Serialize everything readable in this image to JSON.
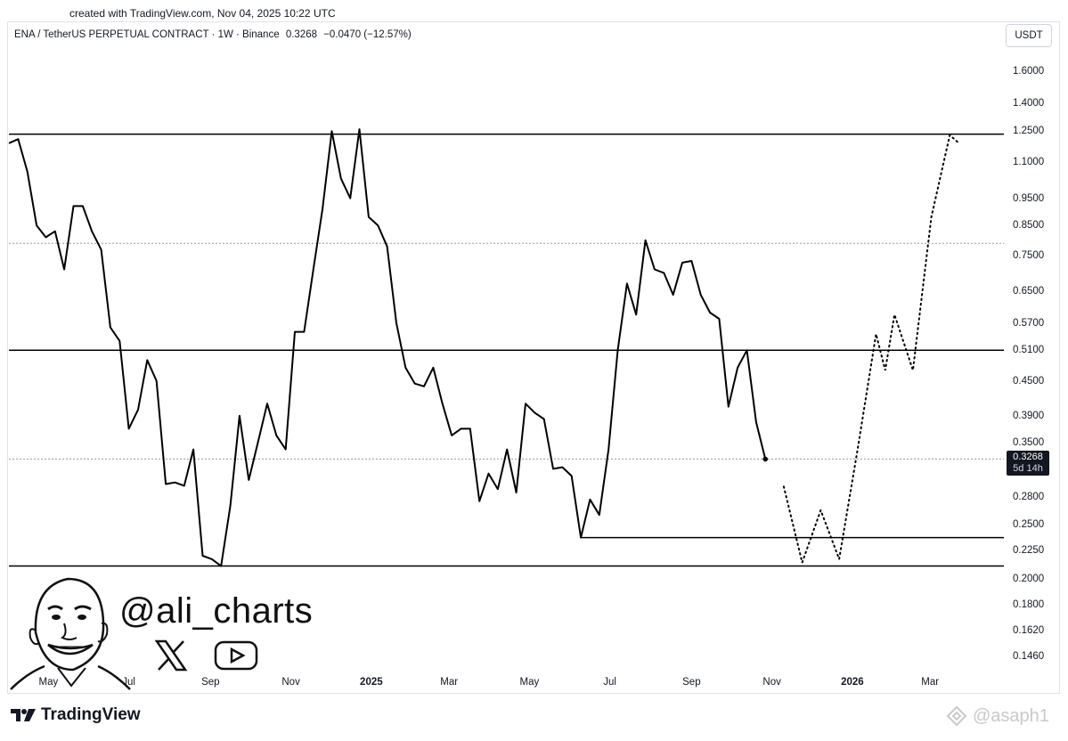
{
  "created_text": "created with TradingView.com, Nov 04, 2025 10:22 UTC",
  "header": {
    "symbol": "ENA / TetherUS PERPETUAL CONTRACT · 1W · Binance",
    "price": "0.3268",
    "change": "−0.0470 (−12.57%)"
  },
  "currency": "USDT",
  "price_badge": {
    "price": "0.3268",
    "countdown": "5d 14h"
  },
  "handle": "@ali_charts",
  "brand": "TradingView",
  "watermark": "@asaph1",
  "colors": {
    "line": "#000000",
    "grid_dash": "#9598a1",
    "badge": "#131722"
  },
  "chart_data": {
    "type": "line",
    "y_scale": "log",
    "ylim": [
      0.135,
      1.75
    ],
    "y_ticks": [
      "1.6000",
      "1.4000",
      "1.2500",
      "1.1000",
      "0.9500",
      "0.8500",
      "0.7500",
      "0.6500",
      "0.5700",
      "0.5100",
      "0.4500",
      "0.3900",
      "0.3500",
      "0.2800",
      "0.2500",
      "0.2250",
      "0.2000",
      "0.1800",
      "0.1620",
      "0.1460"
    ],
    "x_labels": [
      {
        "label": "May",
        "bold": false
      },
      {
        "label": "Jul",
        "bold": false
      },
      {
        "label": "Sep",
        "bold": false
      },
      {
        "label": "Nov",
        "bold": false
      },
      {
        "label": "2025",
        "bold": true
      },
      {
        "label": "Mar",
        "bold": false
      },
      {
        "label": "May",
        "bold": false
      },
      {
        "label": "Jul",
        "bold": false
      },
      {
        "label": "Sep",
        "bold": false
      },
      {
        "label": "Nov",
        "bold": false
      },
      {
        "label": "2026",
        "bold": true
      },
      {
        "label": "Mar",
        "bold": false
      }
    ],
    "x_range": [
      "2024-04-01",
      "2026-04-26"
    ],
    "price_series": [
      [
        "2024-04-01",
        1.19
      ],
      [
        "2024-04-08",
        1.21
      ],
      [
        "2024-04-15",
        1.06
      ],
      [
        "2024-04-22",
        0.85
      ],
      [
        "2024-04-29",
        0.81
      ],
      [
        "2024-05-06",
        0.83
      ],
      [
        "2024-05-13",
        0.71
      ],
      [
        "2024-05-20",
        0.92
      ],
      [
        "2024-05-27",
        0.92
      ],
      [
        "2024-06-03",
        0.83
      ],
      [
        "2024-06-10",
        0.77
      ],
      [
        "2024-06-17",
        0.56
      ],
      [
        "2024-06-24",
        0.53
      ],
      [
        "2024-07-01",
        0.37
      ],
      [
        "2024-07-08",
        0.4
      ],
      [
        "2024-07-15",
        0.49
      ],
      [
        "2024-07-22",
        0.45
      ],
      [
        "2024-07-29",
        0.295
      ],
      [
        "2024-08-05",
        0.297
      ],
      [
        "2024-08-12",
        0.293
      ],
      [
        "2024-08-19",
        0.34
      ],
      [
        "2024-08-26",
        0.22
      ],
      [
        "2024-09-02",
        0.217
      ],
      [
        "2024-09-09",
        0.211
      ],
      [
        "2024-09-16",
        0.27
      ],
      [
        "2024-09-23",
        0.39
      ],
      [
        "2024-09-30",
        0.3
      ],
      [
        "2024-10-07",
        0.35
      ],
      [
        "2024-10-14",
        0.41
      ],
      [
        "2024-10-21",
        0.36
      ],
      [
        "2024-10-28",
        0.34
      ],
      [
        "2024-11-04",
        0.55
      ],
      [
        "2024-11-11",
        0.55
      ],
      [
        "2024-11-18",
        0.71
      ],
      [
        "2024-11-25",
        0.91
      ],
      [
        "2024-12-02",
        1.25
      ],
      [
        "2024-12-09",
        1.03
      ],
      [
        "2024-12-16",
        0.95
      ],
      [
        "2024-12-23",
        1.26
      ],
      [
        "2024-12-30",
        0.88
      ],
      [
        "2025-01-06",
        0.85
      ],
      [
        "2025-01-13",
        0.78
      ],
      [
        "2025-01-20",
        0.57
      ],
      [
        "2025-01-27",
        0.475
      ],
      [
        "2025-02-03",
        0.445
      ],
      [
        "2025-02-10",
        0.44
      ],
      [
        "2025-02-17",
        0.475
      ],
      [
        "2025-02-24",
        0.41
      ],
      [
        "2025-03-03",
        0.36
      ],
      [
        "2025-03-10",
        0.37
      ],
      [
        "2025-03-17",
        0.37
      ],
      [
        "2025-03-24",
        0.275
      ],
      [
        "2025-03-31",
        0.308
      ],
      [
        "2025-04-07",
        0.289
      ],
      [
        "2025-04-14",
        0.34
      ],
      [
        "2025-04-21",
        0.285
      ],
      [
        "2025-04-28",
        0.41
      ],
      [
        "2025-05-05",
        0.395
      ],
      [
        "2025-05-12",
        0.385
      ],
      [
        "2025-05-19",
        0.314
      ],
      [
        "2025-05-26",
        0.316
      ],
      [
        "2025-06-02",
        0.305
      ],
      [
        "2025-06-09",
        0.237
      ],
      [
        "2025-06-16",
        0.277
      ],
      [
        "2025-06-23",
        0.26
      ],
      [
        "2025-06-30",
        0.34
      ],
      [
        "2025-07-07",
        0.51
      ],
      [
        "2025-07-14",
        0.67
      ],
      [
        "2025-07-21",
        0.59
      ],
      [
        "2025-07-28",
        0.8
      ],
      [
        "2025-08-04",
        0.71
      ],
      [
        "2025-08-11",
        0.7
      ],
      [
        "2025-08-18",
        0.64
      ],
      [
        "2025-08-25",
        0.73
      ],
      [
        "2025-09-01",
        0.735
      ],
      [
        "2025-09-08",
        0.64
      ],
      [
        "2025-09-15",
        0.595
      ],
      [
        "2025-09-22",
        0.58
      ],
      [
        "2025-09-29",
        0.405
      ],
      [
        "2025-10-06",
        0.475
      ],
      [
        "2025-10-13",
        0.51
      ],
      [
        "2025-10-20",
        0.38
      ],
      [
        "2025-10-27",
        0.3268
      ]
    ],
    "projection_series": [
      [
        "2025-11-10",
        0.292
      ],
      [
        "2025-11-24",
        0.214
      ],
      [
        "2025-12-08",
        0.265
      ],
      [
        "2025-12-22",
        0.217
      ],
      [
        "2026-01-05",
        0.34
      ],
      [
        "2026-01-19",
        0.545
      ],
      [
        "2026-01-26",
        0.47
      ],
      [
        "2026-02-02",
        0.59
      ],
      [
        "2026-02-16",
        0.47
      ],
      [
        "2026-03-02",
        0.88
      ],
      [
        "2026-03-16",
        1.23
      ],
      [
        "2026-03-23",
        1.19
      ]
    ],
    "levels": [
      {
        "value": 1.235,
        "style": "solid",
        "from": "start"
      },
      {
        "value": 0.79,
        "style": "dotted",
        "from": "start"
      },
      {
        "value": 0.51,
        "style": "solid",
        "from": "start"
      },
      {
        "value": 0.3268,
        "style": "dotted",
        "from": "start"
      },
      {
        "value": 0.237,
        "style": "solid",
        "from": "2025-06-09"
      },
      {
        "value": 0.211,
        "style": "solid",
        "from": "start"
      }
    ],
    "grid": false
  }
}
